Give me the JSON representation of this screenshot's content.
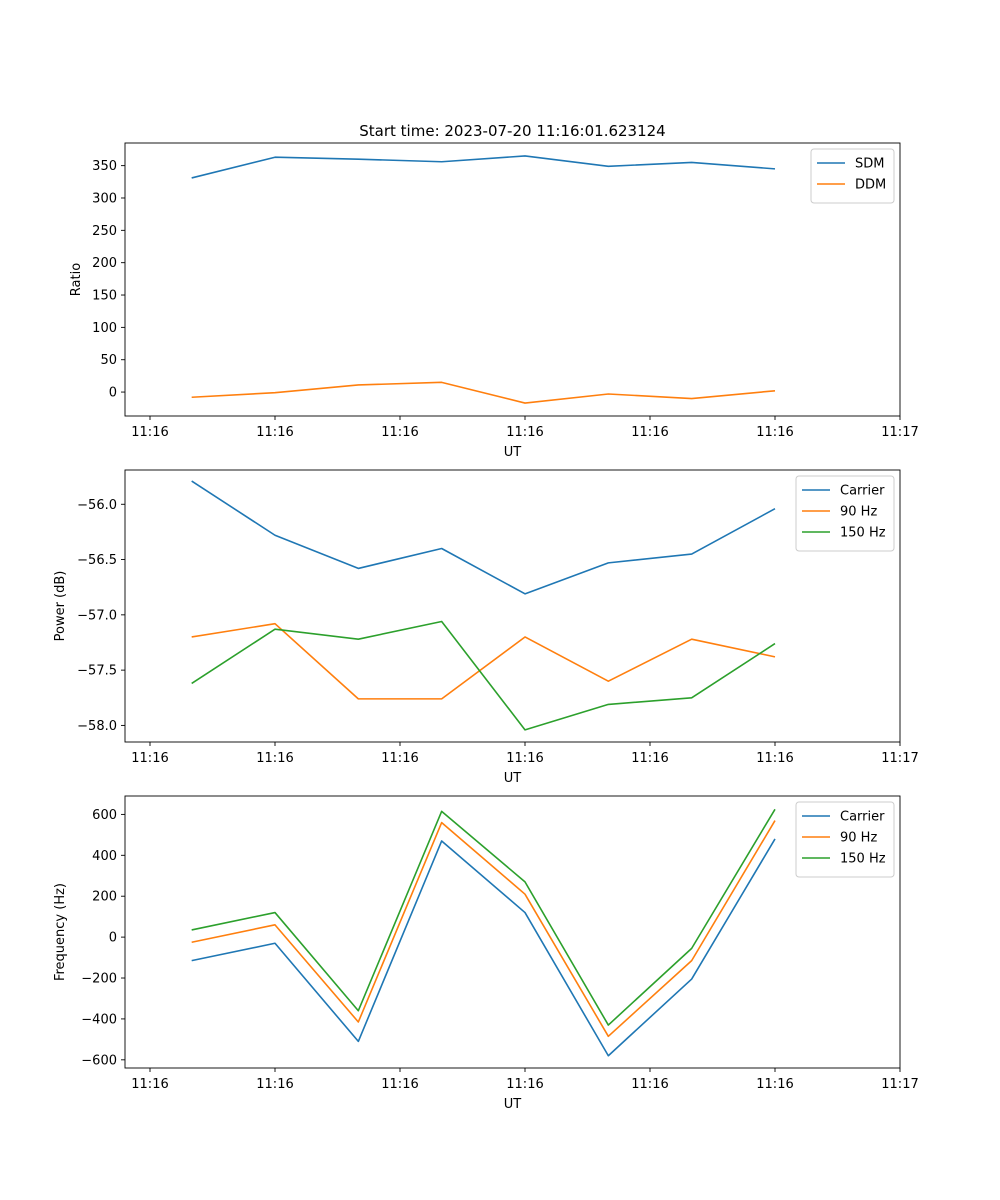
{
  "chart_data": [
    {
      "type": "line",
      "title": "Start time: 2023-07-20 11:16:01.623124",
      "xlabel": "UT",
      "ylabel": "Ratio",
      "x": [
        1,
        2,
        3,
        4,
        5,
        6,
        7,
        8
      ],
      "xlim": [
        0.2,
        9.5
      ],
      "xticks": [
        0.5,
        2,
        3.5,
        5,
        6.5,
        8,
        9.5
      ],
      "xticklabels": [
        "11:16",
        "11:16",
        "11:16",
        "11:16",
        "11:16",
        "11:16",
        "11:17"
      ],
      "ylim": [
        -37,
        385
      ],
      "yticks": [
        0,
        50,
        100,
        150,
        200,
        250,
        300,
        350
      ],
      "yticklabels": [
        "0",
        "50",
        "100",
        "150",
        "200",
        "250",
        "300",
        "350"
      ],
      "legend_position": "top-right",
      "series": [
        {
          "name": "SDM",
          "color": "#1f77b4",
          "values": [
            331,
            363,
            360,
            356,
            365,
            349,
            355,
            345
          ]
        },
        {
          "name": "DDM",
          "color": "#ff7f0e",
          "values": [
            -8,
            -1,
            11,
            15,
            -17,
            -3,
            -10,
            2
          ]
        }
      ]
    },
    {
      "type": "line",
      "title": "",
      "xlabel": "UT",
      "ylabel": "Power (dB)",
      "x": [
        1,
        2,
        3,
        4,
        5,
        6,
        7,
        8
      ],
      "xlim": [
        0.2,
        9.5
      ],
      "xticks": [
        0.5,
        2,
        3.5,
        5,
        6.5,
        8,
        9.5
      ],
      "xticklabels": [
        "11:16",
        "11:16",
        "11:16",
        "11:16",
        "11:16",
        "11:16",
        "11:17"
      ],
      "ylim": [
        -58.15,
        -55.69
      ],
      "yticks": [
        -56.0,
        -56.5,
        -57.0,
        -57.5,
        -58.0
      ],
      "yticklabels": [
        "−56.0",
        "−56.5",
        "−57.0",
        "−57.5",
        "−58.0"
      ],
      "legend_position": "top-right",
      "series": [
        {
          "name": "Carrier",
          "color": "#1f77b4",
          "values": [
            -55.79,
            -56.28,
            -56.58,
            -56.4,
            -56.81,
            -56.53,
            -56.45,
            -56.04
          ]
        },
        {
          "name": "90 Hz",
          "color": "#ff7f0e",
          "values": [
            -57.2,
            -57.08,
            -57.76,
            -57.76,
            -57.2,
            -57.6,
            -57.22,
            -57.38
          ]
        },
        {
          "name": "150 Hz",
          "color": "#2ca02c",
          "values": [
            -57.62,
            -57.13,
            -57.22,
            -57.06,
            -58.04,
            -57.81,
            -57.75,
            -57.26
          ]
        }
      ]
    },
    {
      "type": "line",
      "title": "",
      "xlabel": "UT",
      "ylabel": "Frequency (Hz)",
      "x": [
        1,
        2,
        3,
        4,
        5,
        6,
        7,
        8
      ],
      "xlim": [
        0.2,
        9.5
      ],
      "xticks": [
        0.5,
        2,
        3.5,
        5,
        6.5,
        8,
        9.5
      ],
      "xticklabels": [
        "11:16",
        "11:16",
        "11:16",
        "11:16",
        "11:16",
        "11:16",
        "11:17"
      ],
      "ylim": [
        -640,
        690
      ],
      "yticks": [
        600,
        400,
        200,
        0,
        -200,
        -400,
        -600
      ],
      "yticklabels": [
        "600",
        "400",
        "200",
        "0",
        "−200",
        "−400",
        "−600"
      ],
      "legend_position": "top-right",
      "series": [
        {
          "name": "Carrier",
          "color": "#1f77b4",
          "values": [
            -115,
            -30,
            -510,
            470,
            120,
            -580,
            -205,
            480
          ]
        },
        {
          "name": "90 Hz",
          "color": "#ff7f0e",
          "values": [
            -25,
            60,
            -415,
            560,
            210,
            -485,
            -115,
            570
          ]
        },
        {
          "name": "150 Hz",
          "color": "#2ca02c",
          "values": [
            35,
            120,
            -360,
            615,
            270,
            -430,
            -55,
            625
          ]
        }
      ]
    }
  ]
}
